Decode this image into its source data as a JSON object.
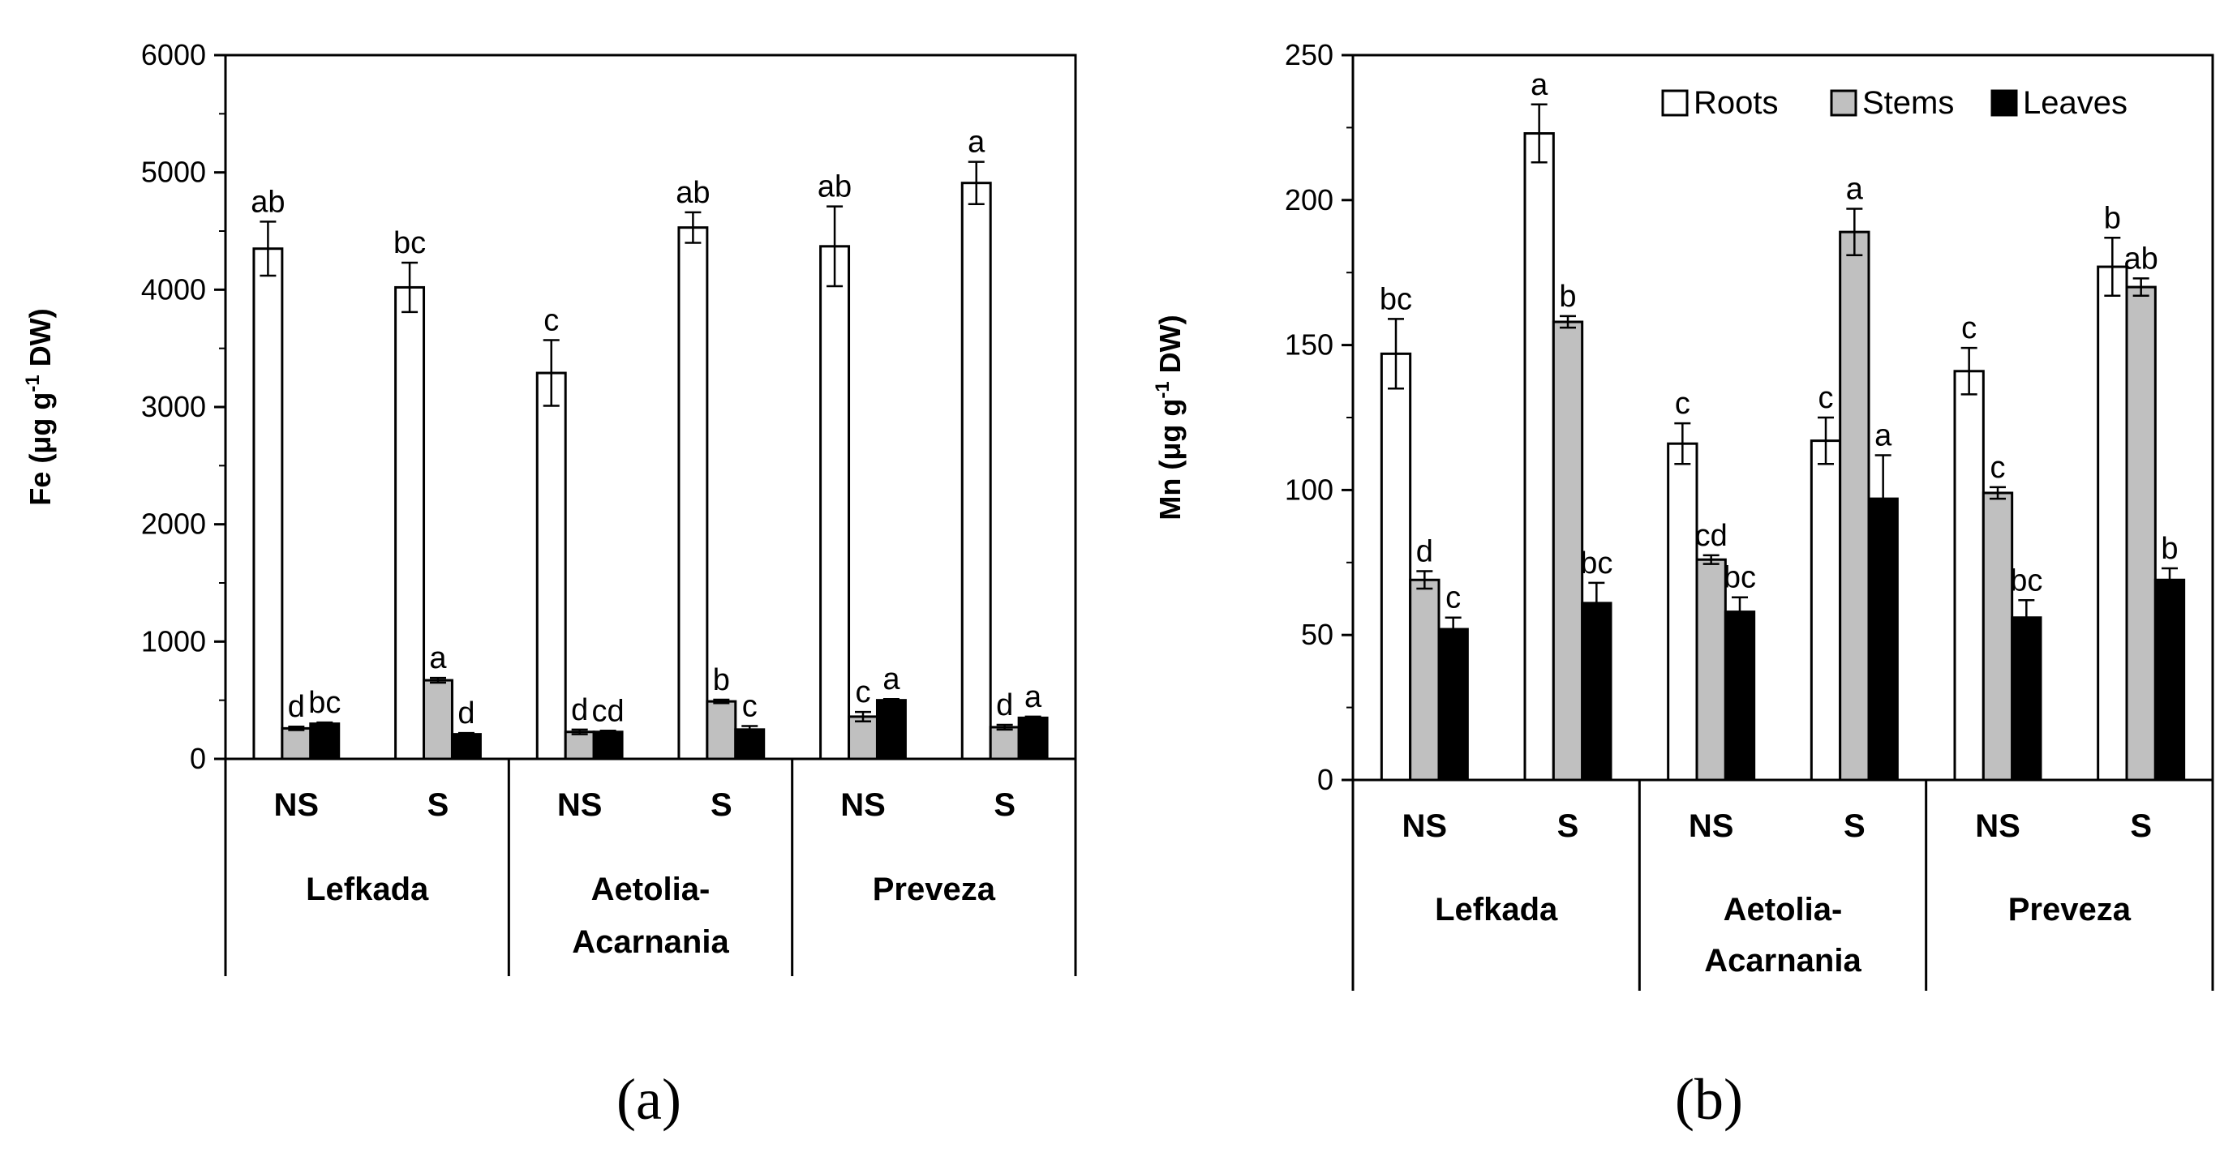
{
  "legend": {
    "items": [
      {
        "label": "Roots",
        "color": "#ffffff"
      },
      {
        "label": "Stems",
        "color": "#c0c0c0"
      },
      {
        "label": "Leaves",
        "color": "#000000"
      }
    ]
  },
  "chart_data": [
    {
      "type": "bar",
      "panel_label": "(a)",
      "ylabel_main": "Fe (μg g",
      "ylabel_sup": "-1",
      "ylabel_tail": " DW)",
      "ylim": [
        0,
        6000
      ],
      "yticks": [
        "0",
        "1000",
        "2000",
        "3000",
        "4000",
        "5000",
        "6000"
      ],
      "categories": [
        "NS",
        "S",
        "NS",
        "S",
        "NS",
        "S"
      ],
      "groups": [
        {
          "name": "Lefkada",
          "lines": [
            "Lefkada"
          ]
        },
        {
          "name": "Aetolia-Acarnania",
          "lines": [
            "Aetolia-",
            "Acarnania"
          ]
        },
        {
          "name": "Preveza",
          "lines": [
            "Preveza"
          ]
        }
      ],
      "series": [
        {
          "name": "Roots",
          "values": [
            4350,
            4020,
            3290,
            4530,
            4370,
            4910
          ],
          "errors": [
            230,
            210,
            280,
            130,
            340,
            180
          ],
          "labels": [
            "ab",
            "bc",
            "c",
            "ab",
            "ab",
            "a"
          ]
        },
        {
          "name": "Stems",
          "values": [
            260,
            670,
            230,
            490,
            360,
            270
          ],
          "errors": [
            15,
            20,
            20,
            15,
            40,
            20
          ],
          "labels": [
            "d",
            "a",
            "d",
            "b",
            "c",
            "d"
          ]
        },
        {
          "name": "Leaves",
          "values": [
            300,
            210,
            230,
            250,
            500,
            350
          ],
          "errors": [
            10,
            10,
            10,
            30,
            10,
            10
          ],
          "labels": [
            "bc",
            "d",
            "cd",
            "c",
            "a",
            "a"
          ]
        }
      ]
    },
    {
      "type": "bar",
      "panel_label": "(b)",
      "ylabel_main": "Mn (μg g",
      "ylabel_sup": "-1",
      "ylabel_tail": " DW)",
      "ylim": [
        0,
        250
      ],
      "yticks": [
        "0",
        "50",
        "100",
        "150",
        "200",
        "250"
      ],
      "categories": [
        "NS",
        "S",
        "NS",
        "S",
        "NS",
        "S"
      ],
      "groups": [
        {
          "name": "Lefkada",
          "lines": [
            "Lefkada"
          ]
        },
        {
          "name": "Aetolia-Acarnania",
          "lines": [
            "Aetolia-",
            "Acarnania"
          ]
        },
        {
          "name": "Preveza",
          "lines": [
            "Preveza"
          ]
        }
      ],
      "series": [
        {
          "name": "Roots",
          "values": [
            147,
            223,
            116,
            117,
            141,
            177
          ],
          "errors": [
            12,
            10,
            7,
            8,
            8,
            10
          ],
          "labels": [
            "bc",
            "a",
            "c",
            "c",
            "c",
            "b"
          ]
        },
        {
          "name": "Stems",
          "values": [
            69,
            158,
            76,
            189,
            99,
            170
          ],
          "errors": [
            3,
            2,
            1.5,
            8,
            2,
            3
          ],
          "labels": [
            "d",
            "b",
            "cd",
            "a",
            "c",
            "ab"
          ]
        },
        {
          "name": "Leaves",
          "values": [
            52,
            61,
            58,
            97,
            56,
            69
          ],
          "errors": [
            4,
            7,
            5,
            15,
            6,
            4
          ],
          "labels": [
            "c",
            "bc",
            "bc",
            "a",
            "bc",
            "b"
          ]
        }
      ]
    }
  ]
}
